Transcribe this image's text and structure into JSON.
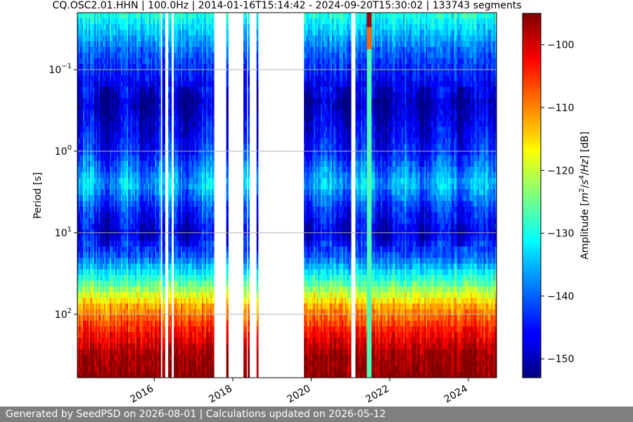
{
  "chart_data": {
    "type": "heatmap",
    "title": "CQ.OSC2.01.HHN | 100.0Hz | 2014-01-16T15:14:42 - 2024-09-20T15:30:02 | 133743 segments",
    "xlabel": "",
    "ylabel": "Period [s]",
    "x_range": [
      "2014-01-16",
      "2024-09-20"
    ],
    "x_ticks": [
      "2016",
      "2018",
      "2020",
      "2022",
      "2024"
    ],
    "y_scale": "log",
    "y_inverted": true,
    "y_range": [
      0.02,
      600
    ],
    "y_ticks": [
      {
        "value": 0.1,
        "base": "10",
        "exp": "−1"
      },
      {
        "value": 1,
        "base": "10",
        "exp": "0"
      },
      {
        "value": 10,
        "base": "10",
        "exp": "1"
      },
      {
        "value": 100,
        "base": "10",
        "exp": "2"
      }
    ],
    "grid": "horizontal",
    "colorbar": {
      "label_parts": [
        "Amplitude [",
        "m",
        "2",
        "/",
        "s",
        "4",
        "/",
        "Hz",
        "] [dB]"
      ],
      "range": [
        -153,
        -95
      ],
      "ticks": [
        "−100",
        "−110",
        "−120",
        "−130",
        "−140",
        "−150"
      ],
      "tick_values": [
        -100,
        -110,
        -120,
        -130,
        -140,
        -150
      ],
      "colormap": "jet"
    },
    "data_segments": [
      {
        "start": "2014-01-16",
        "end": "2016-03-01"
      },
      {
        "start": "2016-03-15",
        "end": "2016-04-10"
      },
      {
        "start": "2016-05-10",
        "end": "2016-06-10"
      },
      {
        "start": "2016-07-01",
        "end": "2017-07-10"
      },
      {
        "start": "2017-11-01",
        "end": "2017-11-20"
      },
      {
        "start": "2018-04-10",
        "end": "2018-05-10"
      },
      {
        "start": "2018-05-20",
        "end": "2018-06-05"
      },
      {
        "start": "2018-08-10",
        "end": "2018-08-25"
      },
      {
        "start": "2019-10-25",
        "end": "2021-01-05"
      },
      {
        "start": "2021-02-15",
        "end": "2024-09-20"
      }
    ],
    "anomaly_interval": {
      "start": "2021-06-01",
      "end": "2021-07-15"
    },
    "spectrum_profile": [
      {
        "period": 0.02,
        "amplitude_db": -129
      },
      {
        "period": 0.03,
        "amplitude_db": -133
      },
      {
        "period": 0.06,
        "amplitude_db": -140
      },
      {
        "period": 0.25,
        "amplitude_db": -150
      },
      {
        "period": 1,
        "amplitude_db": -144
      },
      {
        "period": 2.5,
        "amplitude_db": -135
      },
      {
        "period": 5,
        "amplitude_db": -143
      },
      {
        "period": 10,
        "amplitude_db": -148
      },
      {
        "period": 20,
        "amplitude_db": -140
      },
      {
        "period": 40,
        "amplitude_db": -127
      },
      {
        "period": 80,
        "amplitude_db": -112
      },
      {
        "period": 150,
        "amplitude_db": -104
      },
      {
        "period": 300,
        "amplitude_db": -97
      },
      {
        "period": 600,
        "amplitude_db": -95
      }
    ]
  },
  "footer": {
    "text": "Generated by SeedPSD on 2026-08-01 | Calculations updated on 2026-05-12"
  }
}
